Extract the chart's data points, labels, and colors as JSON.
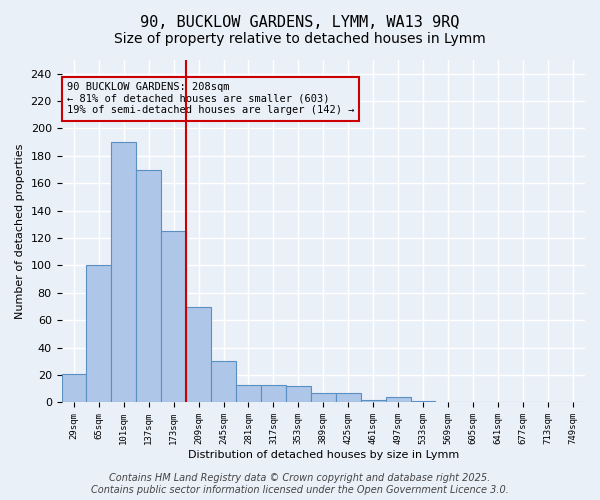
{
  "title": "90, BUCKLOW GARDENS, LYMM, WA13 9RQ",
  "subtitle": "Size of property relative to detached houses in Lymm",
  "xlabel": "Distribution of detached houses by size in Lymm",
  "ylabel": "Number of detached properties",
  "bar_values": [
    21,
    100,
    190,
    170,
    125,
    70,
    30,
    13,
    13,
    12,
    7,
    7,
    2,
    4,
    1,
    0,
    0,
    0,
    0,
    0,
    0
  ],
  "categories": [
    "29sqm",
    "65sqm",
    "101sqm",
    "137sqm",
    "173sqm",
    "209sqm",
    "245sqm",
    "281sqm",
    "317sqm",
    "353sqm",
    "389sqm",
    "425sqm",
    "461sqm",
    "497sqm",
    "533sqm",
    "569sqm",
    "605sqm",
    "641sqm",
    "677sqm",
    "713sqm",
    "749sqm"
  ],
  "bar_color": "#aec6e8",
  "bar_edge_color": "#5a8fc2",
  "vline_x_index": 5,
  "vline_color": "#cc0000",
  "annotation_box_text": "90 BUCKLOW GARDENS: 208sqm\n← 81% of detached houses are smaller (603)\n19% of semi-detached houses are larger (142) →",
  "annotation_box_color": "#cc0000",
  "annotation_text_color": "#000000",
  "ylim": [
    0,
    250
  ],
  "yticks": [
    0,
    20,
    40,
    60,
    80,
    100,
    120,
    140,
    160,
    180,
    200,
    220,
    240
  ],
  "background_color": "#eaf0f8",
  "grid_color": "#ffffff",
  "footer_text": "Contains HM Land Registry data © Crown copyright and database right 2025.\nContains public sector information licensed under the Open Government Licence 3.0.",
  "title_fontsize": 11,
  "subtitle_fontsize": 10,
  "footer_fontsize": 7
}
